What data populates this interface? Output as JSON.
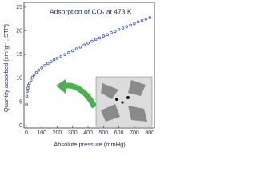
{
  "chart_data": {
    "type": "scatter",
    "title": "Adsorption of CO₂ at 473 K",
    "x_label": "Absolute pressure (mmHg)",
    "y_label": "Quantity adsorbed (cm³g⁻¹, STP)",
    "color": "#3a57d6",
    "x": [
      1,
      3,
      6,
      10,
      15,
      20,
      30,
      40,
      50,
      65,
      80,
      100,
      120,
      140,
      160,
      180,
      200,
      225,
      250,
      275,
      300,
      325,
      350,
      375,
      400,
      425,
      450,
      475,
      500,
      525,
      550,
      575,
      600,
      625,
      650,
      675,
      700,
      725,
      750,
      775,
      800
    ],
    "values": [
      4.5,
      6.2,
      7.2,
      7.9,
      8.5,
      8.9,
      9.6,
      10.2,
      10.7,
      11.2,
      11.7,
      12.2,
      12.7,
      13.1,
      13.5,
      13.9,
      14.2,
      14.6,
      15.0,
      15.4,
      15.8,
      16.2,
      16.6,
      17.0,
      17.4,
      17.8,
      18.2,
      18.5,
      18.9,
      19.2,
      19.6,
      19.9,
      20.3,
      20.6,
      20.9,
      21.2,
      21.5,
      21.9,
      22.2,
      22.5,
      22.8
    ],
    "xlim": [
      -15,
      830
    ],
    "xticks": [
      0,
      100,
      200,
      300,
      400,
      500,
      600,
      700,
      800
    ],
    "ylim": [
      -0.5,
      26
    ],
    "yticks": [
      0,
      5,
      10,
      15,
      20,
      25
    ]
  }
}
